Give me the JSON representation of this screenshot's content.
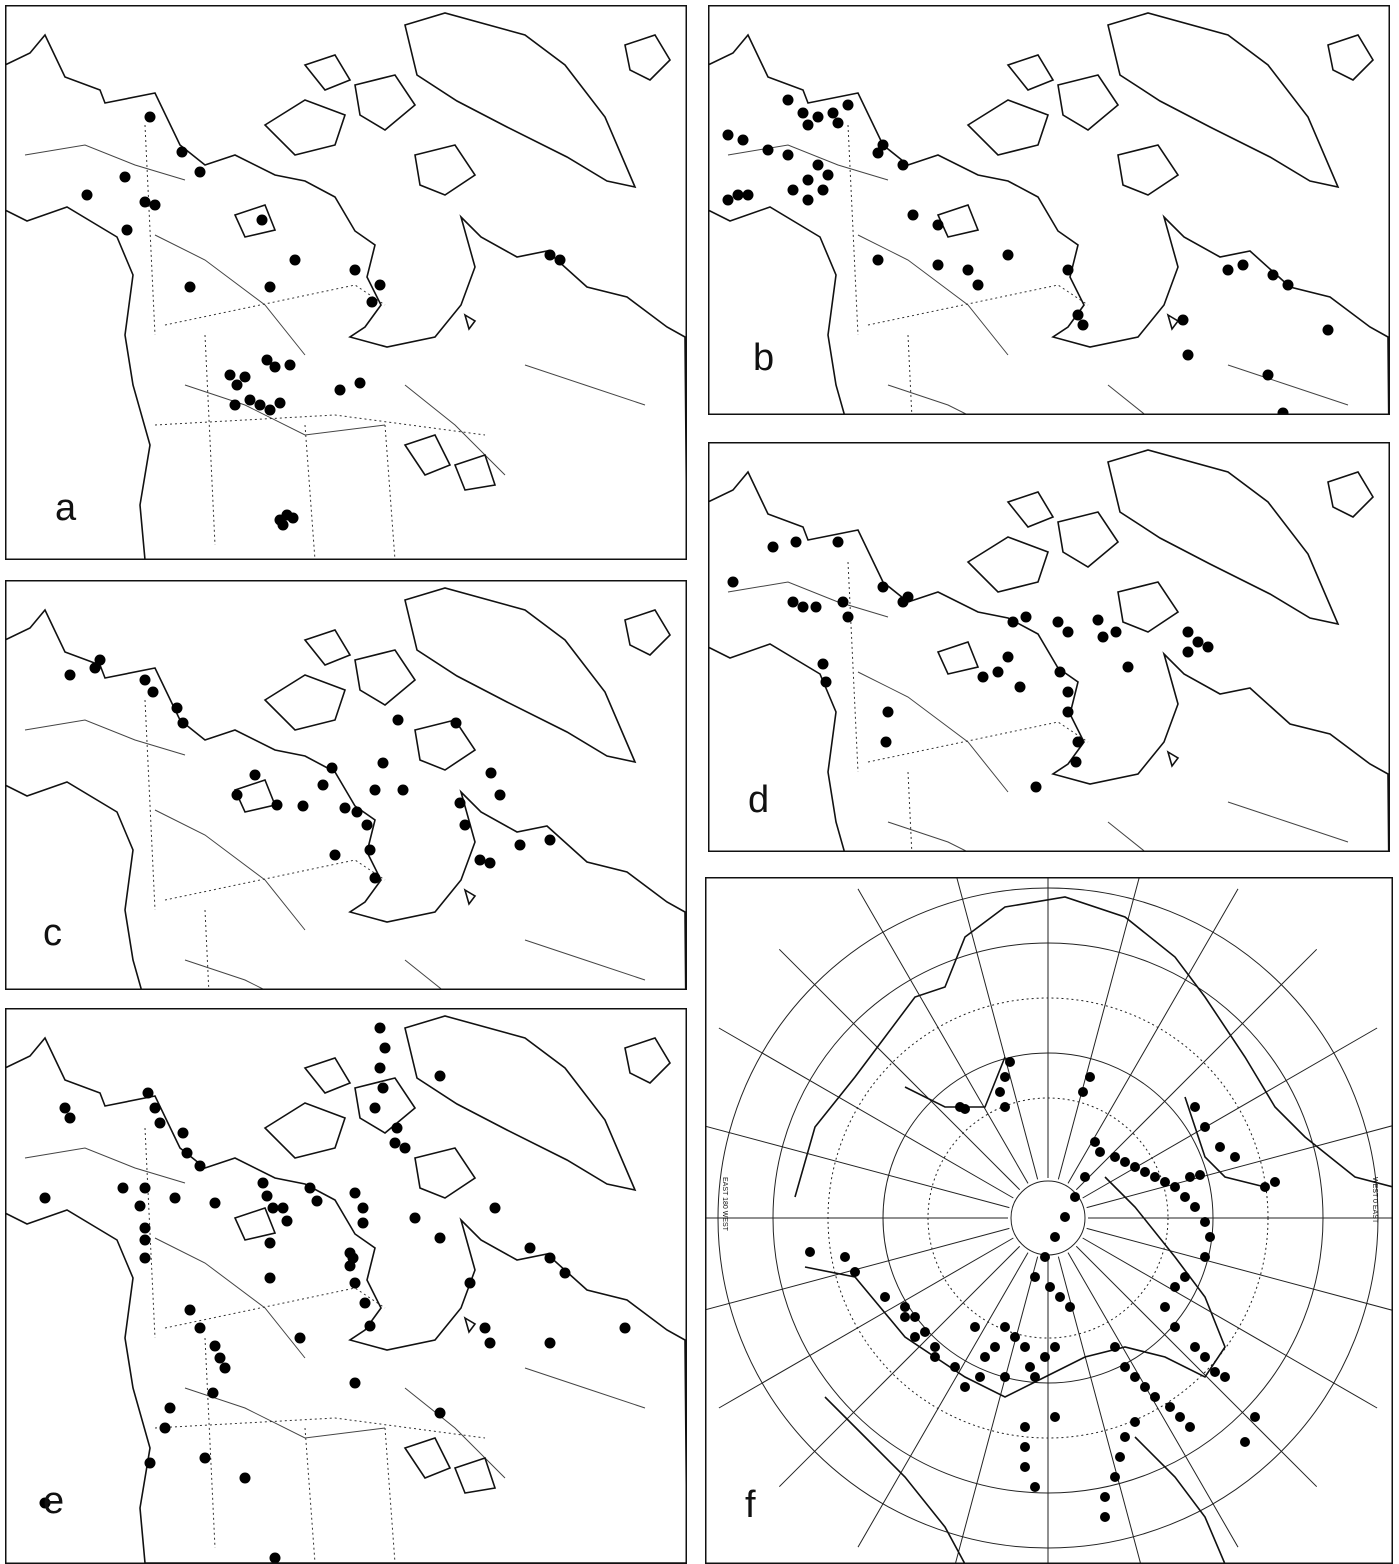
{
  "panels": [
    {
      "label": "a"
    },
    {
      "label": "b"
    },
    {
      "label": "c"
    },
    {
      "label": "d"
    },
    {
      "label": "e"
    },
    {
      "label": "f"
    }
  ],
  "polar_map": {
    "left_label": "EAST 180 WEST",
    "right_label": "WEST 0 EAST"
  }
}
